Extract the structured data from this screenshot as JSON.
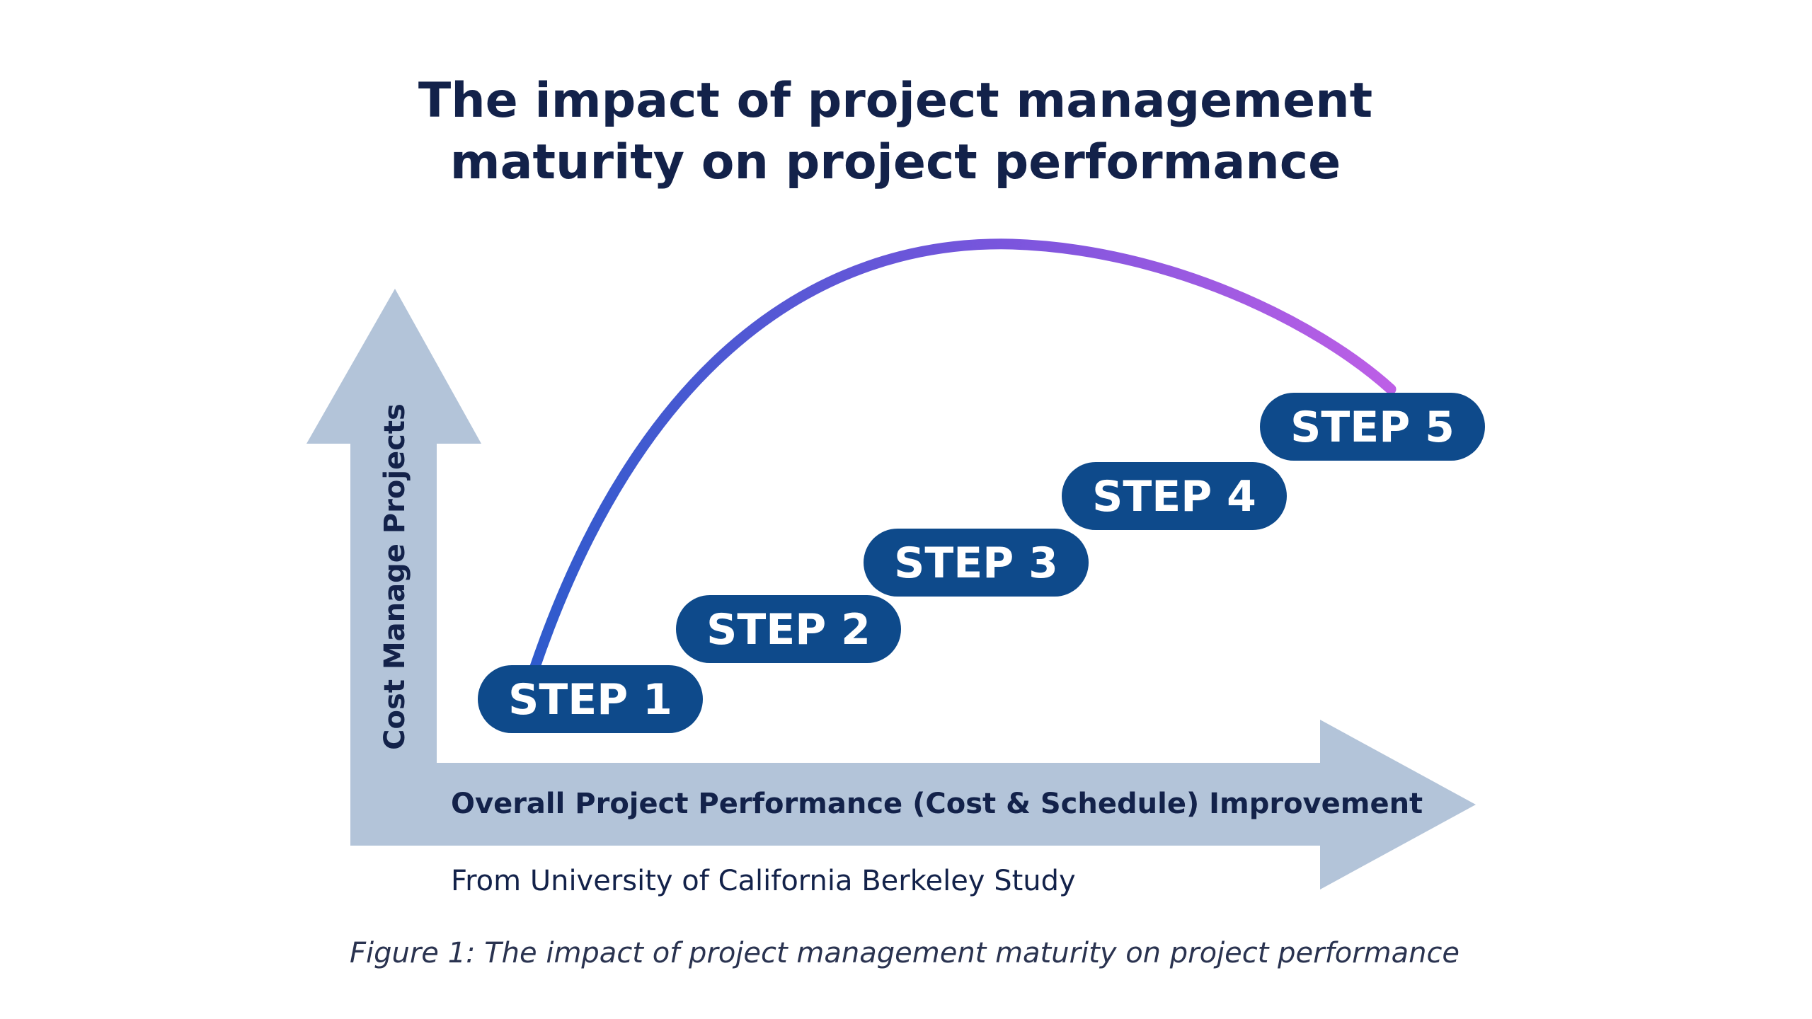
{
  "title": {
    "line1": "The impact of project management",
    "line2": "maturity on project performance"
  },
  "axes": {
    "y_label": "Cost Manage Projects",
    "x_label": "Overall Project Performance (Cost & Schedule) Improvement"
  },
  "source_note": "From University of California Berkeley Study",
  "steps": [
    {
      "label": "STEP 1"
    },
    {
      "label": "STEP 2"
    },
    {
      "label": "STEP 3"
    },
    {
      "label": "STEP 4"
    },
    {
      "label": "STEP 5"
    }
  ],
  "caption": "Figure 1: The impact of project management maturity on project performance",
  "colors": {
    "title": "#13224a",
    "arrow": "#b3c4d9",
    "step_fill": "#0e4a8b",
    "curve_start": "#2f5bcc",
    "curve_mid": "#7a55dd",
    "curve_end": "#bd5fe6"
  }
}
